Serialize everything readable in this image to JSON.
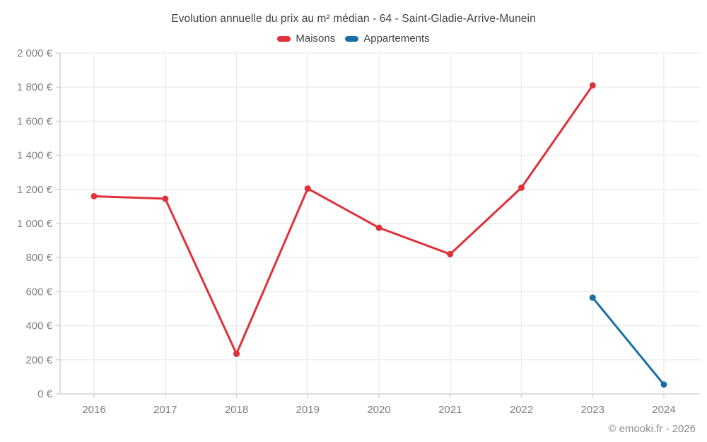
{
  "header": {
    "title": "Evolution annuelle du prix au m² médian - 64 - Saint-Gladie-Arrive-Munein"
  },
  "footer": {
    "credit": "© emooki.fr - 2026"
  },
  "colors": {
    "maisons_red": "#e0313a",
    "appartements_blue": "#1a6fa8",
    "grid": "#ededed",
    "axis": "#d4d4d4",
    "tick_text": "#7e8084",
    "title_text": "#3f4245",
    "footer_text": "#8a8f94"
  },
  "chart_data": {
    "type": "line",
    "title": "Evolution annuelle du prix au m² médian - 64 - Saint-Gladie-Arrive-Munein",
    "xlabel": "",
    "ylabel": "",
    "x": [
      2016,
      2017,
      2018,
      2019,
      2020,
      2021,
      2022,
      2023,
      2024
    ],
    "ylim": [
      0,
      2000
    ],
    "ytick_step": 200,
    "ytick_suffix": " €",
    "grid": true,
    "legend_position": "top",
    "series": [
      {
        "name": "Maisons",
        "color": "#e0313a",
        "points": [
          {
            "x": 2016,
            "y": 1160
          },
          {
            "x": 2017,
            "y": 1145
          },
          {
            "x": 2018,
            "y": 235
          },
          {
            "x": 2019,
            "y": 1205
          },
          {
            "x": 2020,
            "y": 975
          },
          {
            "x": 2021,
            "y": 820
          },
          {
            "x": 2022,
            "y": 1210
          },
          {
            "x": 2023,
            "y": 1810
          }
        ]
      },
      {
        "name": "Appartements",
        "color": "#1a6fa8",
        "points": [
          {
            "x": 2023,
            "y": 565
          },
          {
            "x": 2024,
            "y": 55
          }
        ]
      }
    ]
  }
}
